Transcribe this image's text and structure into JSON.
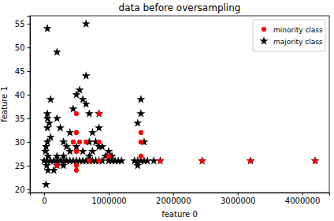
{
  "chart_data": {
    "type": "scatter",
    "title": "data before oversampling",
    "x_label": "feature 0",
    "y_label": "feature 1",
    "xlim": [
      -220000,
      4420000
    ],
    "ylim": [
      19.3,
      56.7
    ],
    "xticks": [
      0,
      1000000,
      2000000,
      3000000,
      4000000
    ],
    "yticks": [
      20,
      25,
      30,
      35,
      40,
      45,
      50,
      55
    ],
    "grid": false,
    "legend": "upper right",
    "series": [
      {
        "name": "minority class",
        "color": "#ff0000",
        "marker": "circle",
        "x": [
          500000,
          850000,
          500000,
          1500000,
          450000,
          550000,
          650000,
          850000,
          1500000,
          500000,
          200000,
          500000,
          500000,
          1500000,
          1800000,
          2450000,
          3200000,
          4200000,
          700000,
          850000,
          1000000
        ],
        "values": [
          36,
          36,
          32,
          32,
          30,
          30,
          30,
          30,
          30,
          28,
          25,
          25,
          24,
          27,
          26,
          26,
          26,
          26,
          26,
          26,
          27
        ]
      },
      {
        "name": "majority class",
        "color": "#000000",
        "marker": "star",
        "x": [
          0,
          50000,
          100000,
          150000,
          200000,
          250000,
          300000,
          350000,
          400000,
          450000,
          500000,
          550000,
          600000,
          650000,
          700000,
          750000,
          800000,
          850000,
          900000,
          1000000,
          1050000,
          1100000,
          1150000,
          1200000,
          1400000,
          1450000,
          1500000,
          1550000,
          1600000,
          1700000,
          1800000,
          2450000,
          3200000,
          4200000,
          50000,
          200000,
          650000,
          650000,
          100000,
          50000,
          50000,
          80000,
          50000,
          100000,
          50000,
          30000,
          20000,
          60000,
          40000,
          60000,
          30000,
          200000,
          250000,
          300000,
          350000,
          400000,
          450000,
          500000,
          550000,
          600000,
          650000,
          700000,
          750000,
          800000,
          850000,
          850000,
          900000,
          950000,
          1000000,
          1050000,
          1450000,
          1500000,
          1500000,
          1550000,
          1450000,
          200000,
          300000,
          400000,
          500000,
          600000,
          700000,
          850000,
          200000,
          150000,
          700000,
          750000,
          300000
        ],
        "values": [
          26,
          26,
          26,
          26,
          26,
          26,
          26,
          26,
          26,
          26,
          26,
          26,
          26,
          26,
          26,
          26,
          26,
          26,
          26,
          26,
          26,
          26,
          26,
          26,
          26,
          26,
          26,
          26,
          26,
          26,
          26,
          26,
          26,
          26,
          54,
          49,
          55,
          44,
          39,
          36,
          35,
          34,
          33,
          31,
          30,
          29,
          28,
          27,
          25,
          24,
          21,
          35,
          33,
          30,
          29,
          32,
          37,
          40,
          41,
          39,
          38,
          36,
          32,
          30,
          33,
          36,
          29,
          27,
          28,
          27,
          34,
          39,
          36,
          30,
          25,
          27,
          27,
          28,
          29,
          28,
          27,
          29,
          25,
          24,
          30,
          28,
          25
        ]
      }
    ]
  }
}
